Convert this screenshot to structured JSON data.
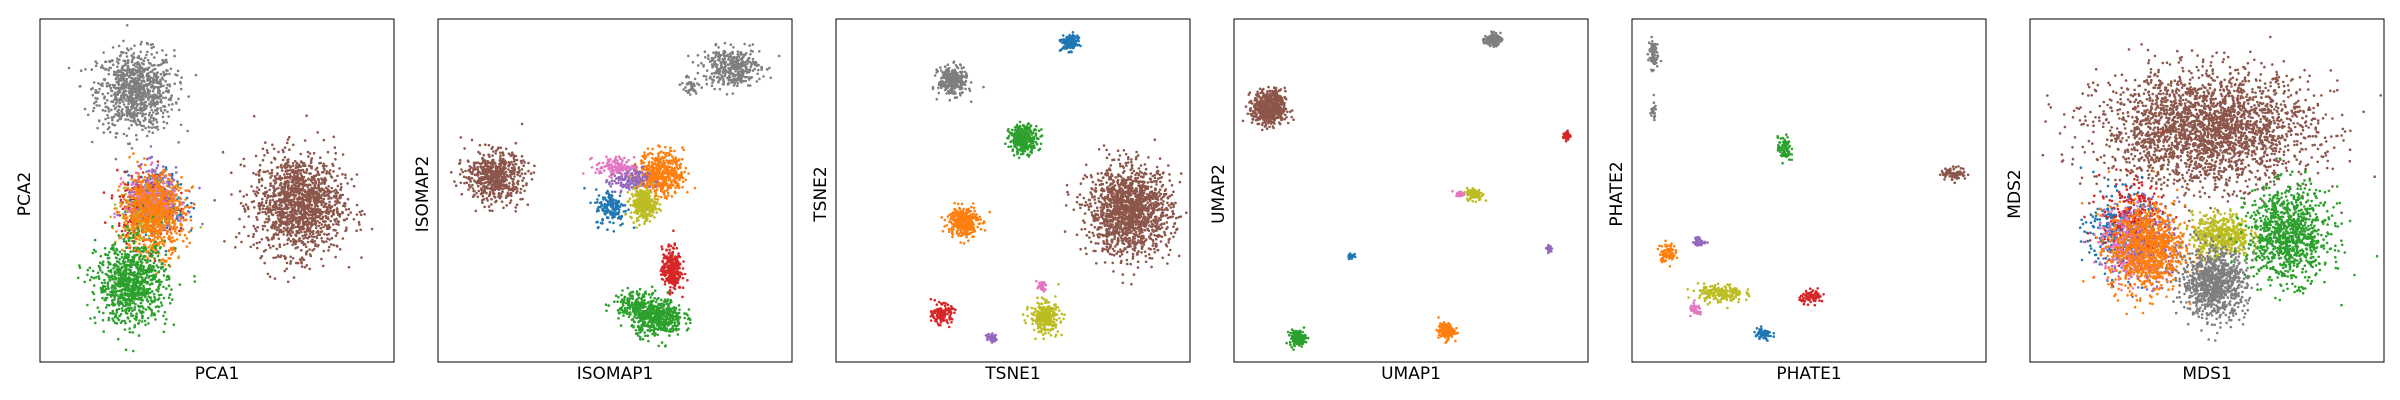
{
  "figure": {
    "colors": {
      "blue": "#1f77b4",
      "orange": "#ff7f0e",
      "green": "#2ca02c",
      "red": "#d62728",
      "purple": "#9467bd",
      "brown": "#8c564b",
      "pink": "#e377c2",
      "gray": "#7f7f7f",
      "olive": "#bcbd22"
    }
  },
  "chart_data": [
    {
      "type": "scatter",
      "xlabel": "PCA1",
      "ylabel": "PCA2",
      "xlim": [
        0,
        100
      ],
      "ylim": [
        0,
        100
      ],
      "grid": false,
      "legend": "none",
      "clusters": [
        {
          "color": "gray",
          "x": 27,
          "y": 79,
          "rx": 12,
          "ry": 13,
          "n": 900
        },
        {
          "color": "brown",
          "x": 73,
          "y": 46,
          "rx": 14,
          "ry": 16,
          "n": 1400
        },
        {
          "color": "blue",
          "x": 33,
          "y": 46,
          "rx": 9,
          "ry": 10,
          "n": 250
        },
        {
          "color": "red",
          "x": 30,
          "y": 45,
          "rx": 9,
          "ry": 11,
          "n": 250
        },
        {
          "color": "purple",
          "x": 33,
          "y": 48,
          "rx": 9,
          "ry": 10,
          "n": 250
        },
        {
          "color": "olive",
          "x": 30,
          "y": 43,
          "rx": 8,
          "ry": 9,
          "n": 250
        },
        {
          "color": "pink",
          "x": 31,
          "y": 47,
          "rx": 8,
          "ry": 9,
          "n": 200
        },
        {
          "color": "orange",
          "x": 32,
          "y": 43,
          "rx": 10,
          "ry": 13,
          "n": 700
        },
        {
          "color": "green",
          "x": 26,
          "y": 23,
          "rx": 11,
          "ry": 13,
          "n": 900
        }
      ]
    },
    {
      "type": "scatter",
      "xlabel": "ISOMAP1",
      "ylabel": "ISOMAP2",
      "xlim": [
        0,
        100
      ],
      "ylim": [
        0,
        100
      ],
      "grid": false,
      "legend": "none",
      "clusters": [
        {
          "color": "gray",
          "x": 83,
          "y": 86,
          "rx": 9,
          "ry": 6,
          "n": 400
        },
        {
          "color": "gray",
          "x": 71,
          "y": 80,
          "rx": 3,
          "ry": 3,
          "n": 40
        },
        {
          "color": "brown",
          "x": 16,
          "y": 54,
          "rx": 9,
          "ry": 8,
          "n": 600
        },
        {
          "color": "orange",
          "x": 63,
          "y": 55,
          "rx": 7,
          "ry": 7,
          "n": 500
        },
        {
          "color": "purple",
          "x": 54,
          "y": 53,
          "rx": 6,
          "ry": 4,
          "n": 150
        },
        {
          "color": "pink",
          "x": 50,
          "y": 57,
          "rx": 6,
          "ry": 3,
          "n": 120
        },
        {
          "color": "blue",
          "x": 49,
          "y": 45,
          "rx": 5,
          "ry": 6,
          "n": 150
        },
        {
          "color": "olive",
          "x": 58,
          "y": 46,
          "rx": 4,
          "ry": 5,
          "n": 300
        },
        {
          "color": "red",
          "x": 66,
          "y": 27,
          "rx": 3,
          "ry": 7,
          "n": 300
        },
        {
          "color": "green",
          "x": 62,
          "y": 13,
          "rx": 8,
          "ry": 6,
          "n": 500
        },
        {
          "color": "green",
          "x": 55,
          "y": 17,
          "rx": 6,
          "ry": 4,
          "n": 150
        }
      ]
    },
    {
      "type": "scatter",
      "xlabel": "TSNE1",
      "ylabel": "TSNE2",
      "xlim": [
        0,
        100
      ],
      "ylim": [
        0,
        100
      ],
      "grid": false,
      "legend": "none",
      "clusters": [
        {
          "color": "blue",
          "x": 66,
          "y": 93,
          "rx": 2.5,
          "ry": 2.5,
          "n": 150
        },
        {
          "color": "gray",
          "x": 33,
          "y": 82,
          "rx": 4.5,
          "ry": 4.5,
          "n": 300
        },
        {
          "color": "green",
          "x": 53,
          "y": 65,
          "rx": 4.5,
          "ry": 4.5,
          "n": 300
        },
        {
          "color": "brown",
          "x": 83,
          "y": 44,
          "rx": 13,
          "ry": 14,
          "n": 1500
        },
        {
          "color": "orange",
          "x": 36,
          "y": 41,
          "rx": 5,
          "ry": 5,
          "n": 300
        },
        {
          "color": "red",
          "x": 30,
          "y": 14,
          "rx": 3,
          "ry": 3,
          "n": 150
        },
        {
          "color": "olive",
          "x": 59,
          "y": 13,
          "rx": 4.5,
          "ry": 5,
          "n": 300
        },
        {
          "color": "pink",
          "x": 58,
          "y": 22,
          "rx": 1.5,
          "ry": 1.5,
          "n": 40
        },
        {
          "color": "purple",
          "x": 44,
          "y": 7,
          "rx": 1.5,
          "ry": 1.5,
          "n": 40
        }
      ]
    },
    {
      "type": "scatter",
      "xlabel": "UMAP1",
      "ylabel": "UMAP2",
      "xlim": [
        0,
        100
      ],
      "ylim": [
        0,
        100
      ],
      "grid": false,
      "legend": "none",
      "clusters": [
        {
          "color": "gray",
          "x": 73,
          "y": 94,
          "rx": 2.5,
          "ry": 2,
          "n": 120
        },
        {
          "color": "brown",
          "x": 10,
          "y": 74,
          "rx": 5,
          "ry": 5.5,
          "n": 600
        },
        {
          "color": "red",
          "x": 94,
          "y": 66,
          "rx": 1.2,
          "ry": 1.5,
          "n": 40
        },
        {
          "color": "olive",
          "x": 68,
          "y": 49,
          "rx": 2.5,
          "ry": 2,
          "n": 120
        },
        {
          "color": "pink",
          "x": 64,
          "y": 49,
          "rx": 1.5,
          "ry": 0.8,
          "n": 30
        },
        {
          "color": "blue",
          "x": 33,
          "y": 31,
          "rx": 1,
          "ry": 1,
          "n": 30
        },
        {
          "color": "purple",
          "x": 89,
          "y": 33,
          "rx": 0.8,
          "ry": 1,
          "n": 25
        },
        {
          "color": "green",
          "x": 18,
          "y": 7,
          "rx": 2.5,
          "ry": 2.5,
          "n": 150
        },
        {
          "color": "orange",
          "x": 60,
          "y": 9,
          "rx": 2.5,
          "ry": 2.5,
          "n": 150
        }
      ]
    },
    {
      "type": "scatter",
      "xlabel": "PHATE1",
      "ylabel": "PHATE2",
      "xlim": [
        0,
        100
      ],
      "ylim": [
        0,
        100
      ],
      "grid": false,
      "legend": "none",
      "clusters": [
        {
          "color": "gray",
          "x": 6,
          "y": 90,
          "rx": 1.5,
          "ry": 5,
          "n": 80
        },
        {
          "color": "gray",
          "x": 6,
          "y": 73,
          "rx": 1,
          "ry": 3,
          "n": 20
        },
        {
          "color": "green",
          "x": 43,
          "y": 62,
          "rx": 2,
          "ry": 4,
          "n": 80
        },
        {
          "color": "brown",
          "x": 91,
          "y": 55,
          "rx": 4,
          "ry": 2,
          "n": 80
        },
        {
          "color": "purple",
          "x": 19,
          "y": 35,
          "rx": 2,
          "ry": 1.5,
          "n": 40
        },
        {
          "color": "orange",
          "x": 10,
          "y": 32,
          "rx": 2.5,
          "ry": 3,
          "n": 80
        },
        {
          "color": "olive",
          "x": 25,
          "y": 20,
          "rx": 7,
          "ry": 3,
          "n": 180
        },
        {
          "color": "red",
          "x": 51,
          "y": 19,
          "rx": 4,
          "ry": 2,
          "n": 80
        },
        {
          "color": "pink",
          "x": 18,
          "y": 15,
          "rx": 2,
          "ry": 2,
          "n": 40
        },
        {
          "color": "blue",
          "x": 37,
          "y": 8,
          "rx": 3,
          "ry": 2,
          "n": 60
        }
      ]
    },
    {
      "type": "scatter",
      "xlabel": "MDS1",
      "ylabel": "MDS2",
      "xlim": [
        0,
        100
      ],
      "ylim": [
        0,
        100
      ],
      "grid": false,
      "legend": "none",
      "clusters": [
        {
          "color": "brown",
          "x": 50,
          "y": 68,
          "rx": 33,
          "ry": 18,
          "n": 2600
        },
        {
          "color": "blue",
          "x": 25,
          "y": 38,
          "rx": 10,
          "ry": 13,
          "n": 300
        },
        {
          "color": "red",
          "x": 29,
          "y": 40,
          "rx": 10,
          "ry": 14,
          "n": 300
        },
        {
          "color": "purple",
          "x": 33,
          "y": 34,
          "rx": 10,
          "ry": 13,
          "n": 300
        },
        {
          "color": "pink",
          "x": 27,
          "y": 34,
          "rx": 9,
          "ry": 12,
          "n": 200
        },
        {
          "color": "orange",
          "x": 33,
          "y": 33,
          "rx": 12,
          "ry": 14,
          "n": 900
        },
        {
          "color": "olive",
          "x": 54,
          "y": 37,
          "rx": 9,
          "ry": 7,
          "n": 500
        },
        {
          "color": "green",
          "x": 73,
          "y": 37,
          "rx": 13,
          "ry": 15,
          "n": 1000
        },
        {
          "color": "gray",
          "x": 52,
          "y": 23,
          "rx": 10,
          "ry": 11,
          "n": 900
        }
      ]
    }
  ]
}
